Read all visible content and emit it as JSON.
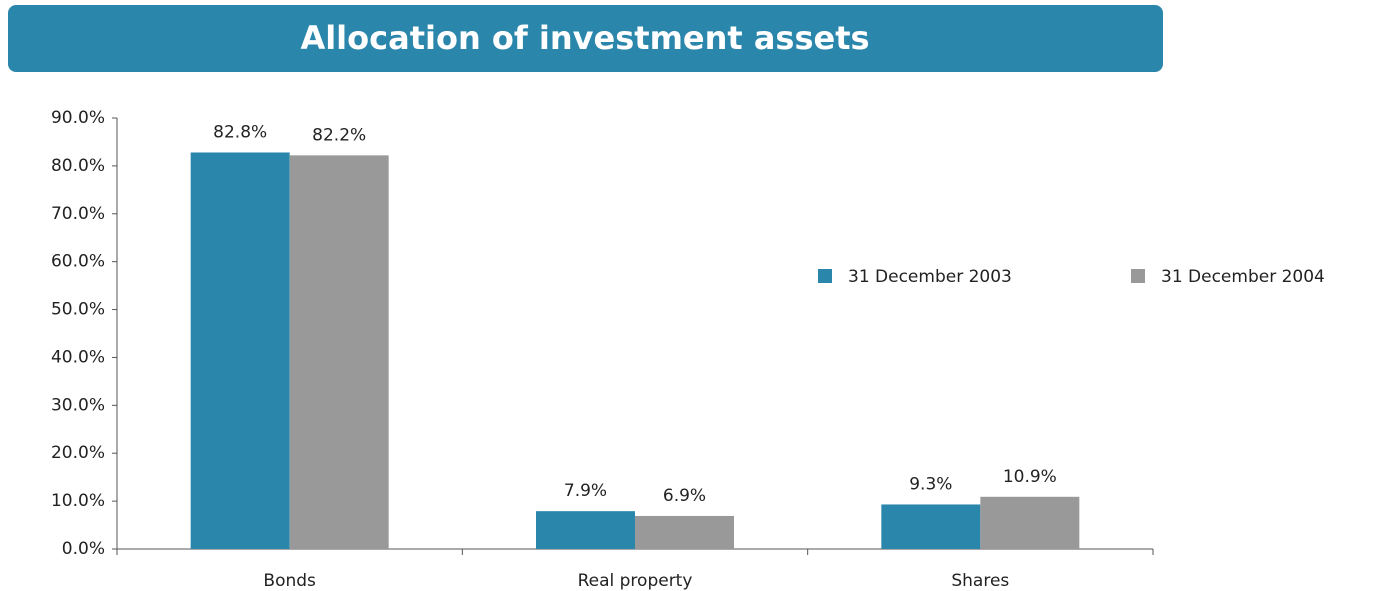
{
  "chart_data": {
    "type": "bar",
    "title": "Allocation of investment assets",
    "categories": [
      "Bonds",
      "Real property",
      "Shares"
    ],
    "series": [
      {
        "name": "31 December 2003",
        "color": "#2a86ab",
        "values": [
          82.8,
          7.9,
          9.3
        ],
        "value_labels": [
          "82.8%",
          "7.9%",
          "9.3%"
        ]
      },
      {
        "name": "31 December 2004",
        "color": "#999999",
        "values": [
          82.2,
          6.9,
          10.9
        ],
        "value_labels": [
          "82.2%",
          "6.9%",
          "10.9%"
        ]
      }
    ],
    "ylim": [
      0,
      90
    ],
    "yticks": [
      {
        "value": 0,
        "label": "0.0%"
      },
      {
        "value": 10,
        "label": "10.0%"
      },
      {
        "value": 20,
        "label": "20.0%"
      },
      {
        "value": 30,
        "label": "30.0%"
      },
      {
        "value": 40,
        "label": "40.0%"
      },
      {
        "value": 50,
        "label": "50.0%"
      },
      {
        "value": 60,
        "label": "60.0%"
      },
      {
        "value": 70,
        "label": "70.0%"
      },
      {
        "value": 80,
        "label": "80.0%"
      },
      {
        "value": 90,
        "label": "90.0%"
      }
    ],
    "grid": false,
    "legend": "right"
  }
}
